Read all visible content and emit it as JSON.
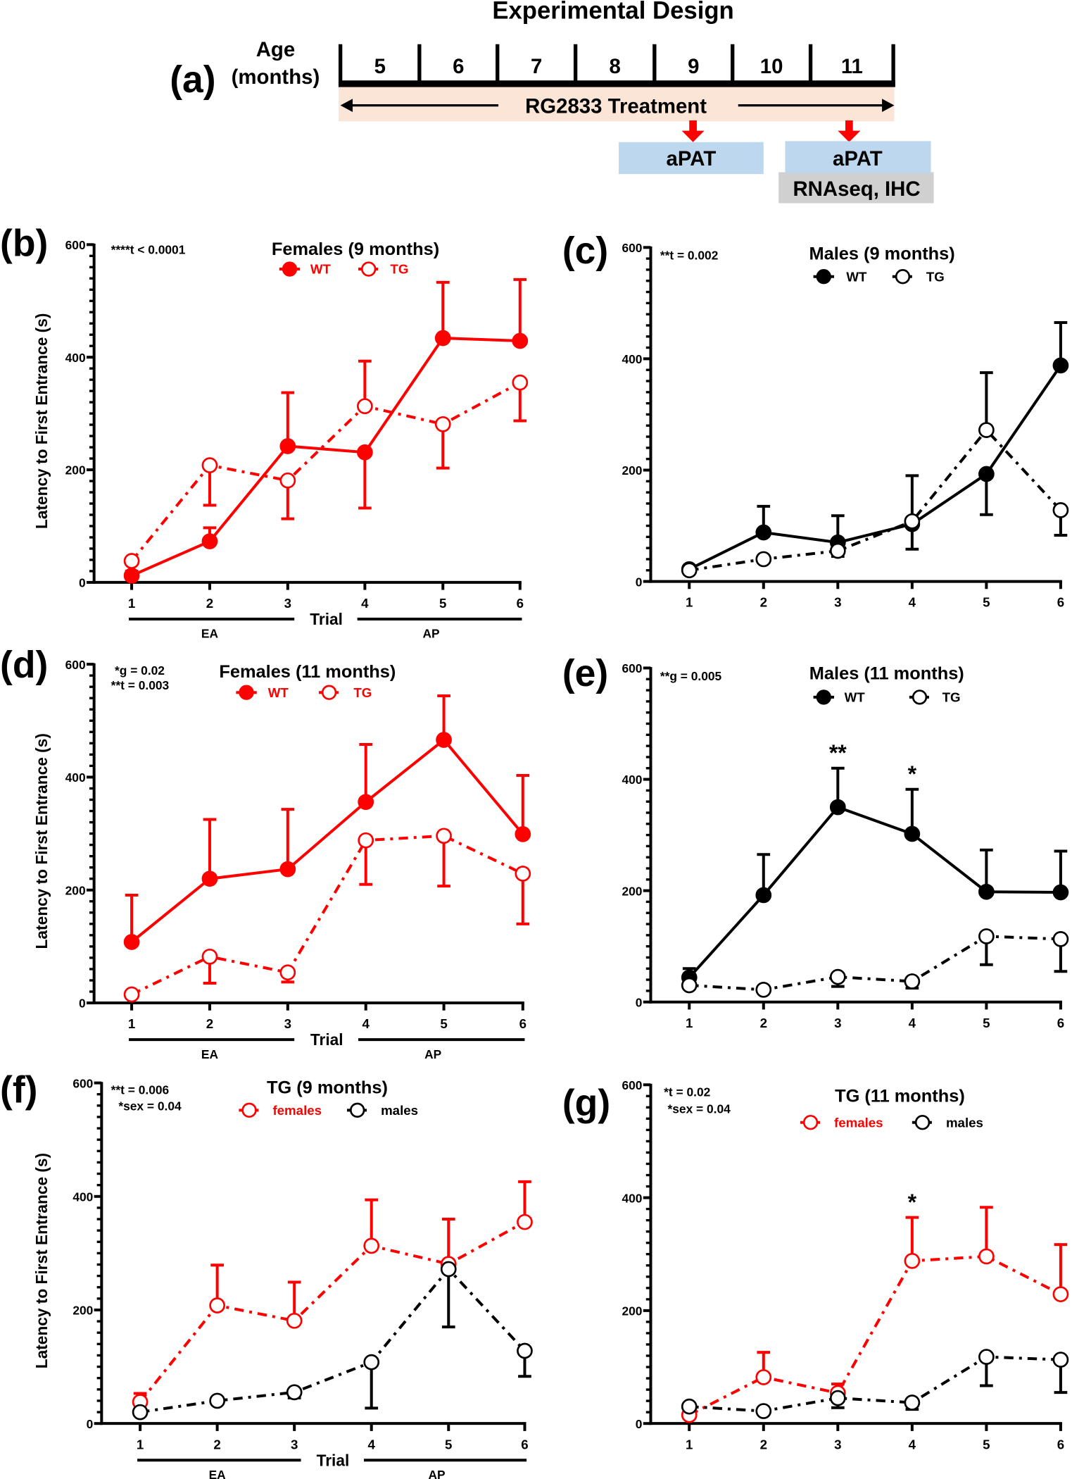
{
  "figure_a": {
    "panel_label": "(a)",
    "title": "Experimental Design",
    "age_label": "Age",
    "months_label": "(months)",
    "months": [
      "5",
      "6",
      "7",
      "8",
      "9",
      "10",
      "11"
    ],
    "treatment": "RG2833 Treatment",
    "box1": "aPAT",
    "box2": "aPAT",
    "box3": "RNAseq, IHC",
    "colors": {
      "treatment_band": "#fbe5d6",
      "apat": "#bdd7ee",
      "rnaseq": "#d0d0d0",
      "arrow": "#ff0000"
    }
  },
  "chart_data": [
    {
      "panel": "(b)",
      "type": "line",
      "title": "Females (9 months)",
      "ylabel": "Latency to First Entrance (s)",
      "xlabel": "Trial",
      "phase_labels": [
        "EA",
        "AP"
      ],
      "annotations": [
        "****t < 0.0001"
      ],
      "ylim": [
        0,
        600
      ],
      "yticks": [
        "0",
        "200",
        "400",
        "600"
      ],
      "x": [
        "1",
        "2",
        "3",
        "4",
        "5",
        "6"
      ],
      "stars": [],
      "series": [
        {
          "name": "WT",
          "color": "#ff0000",
          "filled": true,
          "dash": "solid",
          "values": [
            12,
            73,
            242,
            231,
            434,
            429
          ],
          "error_to": [
            20,
            97,
            337,
            132,
            533,
            538
          ]
        },
        {
          "name": "TG",
          "color": "#ff0000",
          "filled": false,
          "dash": "dashdot",
          "values": [
            38,
            208,
            181,
            313,
            281,
            355
          ],
          "error_to": [
            null,
            137,
            113,
            393,
            203,
            287
          ]
        }
      ]
    },
    {
      "panel": "(c)",
      "type": "line",
      "title": "Males (9 months)",
      "ylabel": "",
      "xlabel": "",
      "phase_labels": [],
      "annotations": [
        "**t = 0.002"
      ],
      "ylim": [
        0,
        600
      ],
      "yticks": [
        "0",
        "200",
        "400",
        "600"
      ],
      "x": [
        "1",
        "2",
        "3",
        "4",
        "5",
        "6"
      ],
      "stars": [],
      "series": [
        {
          "name": "WT",
          "color": "#000000",
          "filled": true,
          "dash": "solid",
          "values": [
            22,
            88,
            70,
            103,
            193,
            388
          ],
          "error_to": [
            null,
            135,
            118,
            58,
            120,
            465
          ]
        },
        {
          "name": "TG",
          "color": "#000000",
          "filled": false,
          "dash": "dashdot",
          "values": [
            20,
            40,
            55,
            108,
            272,
            128
          ],
          "error_to": [
            null,
            null,
            45,
            190,
            375,
            83
          ]
        }
      ]
    },
    {
      "panel": "(d)",
      "type": "line",
      "title": "Females (11 months)",
      "ylabel": "Latency to First Entrance (s)",
      "xlabel": "Trial",
      "phase_labels": [
        "EA",
        "AP"
      ],
      "annotations": [
        "*g = 0.02",
        "**t = 0.003"
      ],
      "ylim": [
        0,
        600
      ],
      "yticks": [
        "0",
        "200",
        "400",
        "600"
      ],
      "x": [
        "1",
        "2",
        "3",
        "4",
        "5",
        "6"
      ],
      "stars": [],
      "series": [
        {
          "name": "WT",
          "color": "#ff0000",
          "filled": true,
          "dash": "solid",
          "values": [
            108,
            220,
            237,
            356,
            466,
            299
          ],
          "error_to": [
            191,
            325,
            343,
            458,
            544,
            403
          ]
        },
        {
          "name": "TG",
          "color": "#ff0000",
          "filled": false,
          "dash": "dashdot",
          "values": [
            15,
            82,
            54,
            288,
            296,
            229
          ],
          "error_to": [
            null,
            35,
            37,
            210,
            207,
            140
          ]
        }
      ]
    },
    {
      "panel": "(e)",
      "type": "line",
      "title": "Males (11 months)",
      "ylabel": "",
      "xlabel": "",
      "phase_labels": [],
      "annotations": [
        "**g = 0.005"
      ],
      "ylim": [
        0,
        600
      ],
      "yticks": [
        "0",
        "200",
        "400",
        "600"
      ],
      "x": [
        "1",
        "2",
        "3",
        "4",
        "5",
        "6"
      ],
      "stars": [
        {
          "trial": "3",
          "text": "**"
        },
        {
          "trial": "4",
          "text": "*"
        }
      ],
      "series": [
        {
          "name": "WT",
          "color": "#000000",
          "filled": true,
          "dash": "solid",
          "values": [
            44,
            192,
            350,
            302,
            198,
            197
          ],
          "error_to": [
            60,
            265,
            420,
            382,
            273,
            271
          ]
        },
        {
          "name": "TG",
          "color": "#000000",
          "filled": false,
          "dash": "dashdot",
          "values": [
            30,
            22,
            45,
            37,
            118,
            113
          ],
          "error_to": [
            null,
            null,
            28,
            25,
            67,
            55
          ]
        }
      ]
    },
    {
      "panel": "(f)",
      "type": "line",
      "title": "TG (9 months)",
      "ylabel": "Latency to First Entrance (s)",
      "xlabel": "Trial",
      "phase_labels": [
        "EA",
        "AP"
      ],
      "annotations": [
        "**t = 0.006",
        "*sex = 0.04"
      ],
      "ylim": [
        0,
        600
      ],
      "yticks": [
        "0",
        "200",
        "400",
        "600"
      ],
      "x": [
        "1",
        "2",
        "3",
        "4",
        "5",
        "6"
      ],
      "stars": [],
      "series": [
        {
          "name": "females",
          "color": "#ff0000",
          "filled": false,
          "dash": "dashdot",
          "values": [
            38,
            208,
            181,
            313,
            281,
            355
          ],
          "error_to": [
            53,
            279,
            249,
            394,
            360,
            426
          ]
        },
        {
          "name": "males",
          "color": "#000000",
          "filled": false,
          "dash": "dashdot",
          "values": [
            20,
            40,
            55,
            108,
            272,
            128
          ],
          "error_to": [
            null,
            null,
            45,
            27,
            170,
            83
          ]
        }
      ]
    },
    {
      "panel": "(g)",
      "type": "line",
      "title": "TG (11 months)",
      "ylabel": "",
      "xlabel": "",
      "phase_labels": [],
      "annotations": [
        "*t = 0.02",
        "*sex = 0.04"
      ],
      "ylim": [
        0,
        600
      ],
      "yticks": [
        "0",
        "200",
        "400",
        "600"
      ],
      "x": [
        "1",
        "2",
        "3",
        "4",
        "5",
        "6"
      ],
      "stars": [
        {
          "trial": "4",
          "text": "*"
        }
      ],
      "series": [
        {
          "name": "females",
          "color": "#ff0000",
          "filled": false,
          "dash": "dashdot",
          "values": [
            15,
            82,
            54,
            288,
            296,
            229
          ],
          "error_to": [
            null,
            126,
            70,
            365,
            383,
            317
          ]
        },
        {
          "name": "males",
          "color": "#000000",
          "filled": false,
          "dash": "dashdot",
          "values": [
            30,
            22,
            45,
            37,
            118,
            113
          ],
          "error_to": [
            null,
            null,
            28,
            25,
            67,
            55
          ]
        }
      ]
    }
  ]
}
